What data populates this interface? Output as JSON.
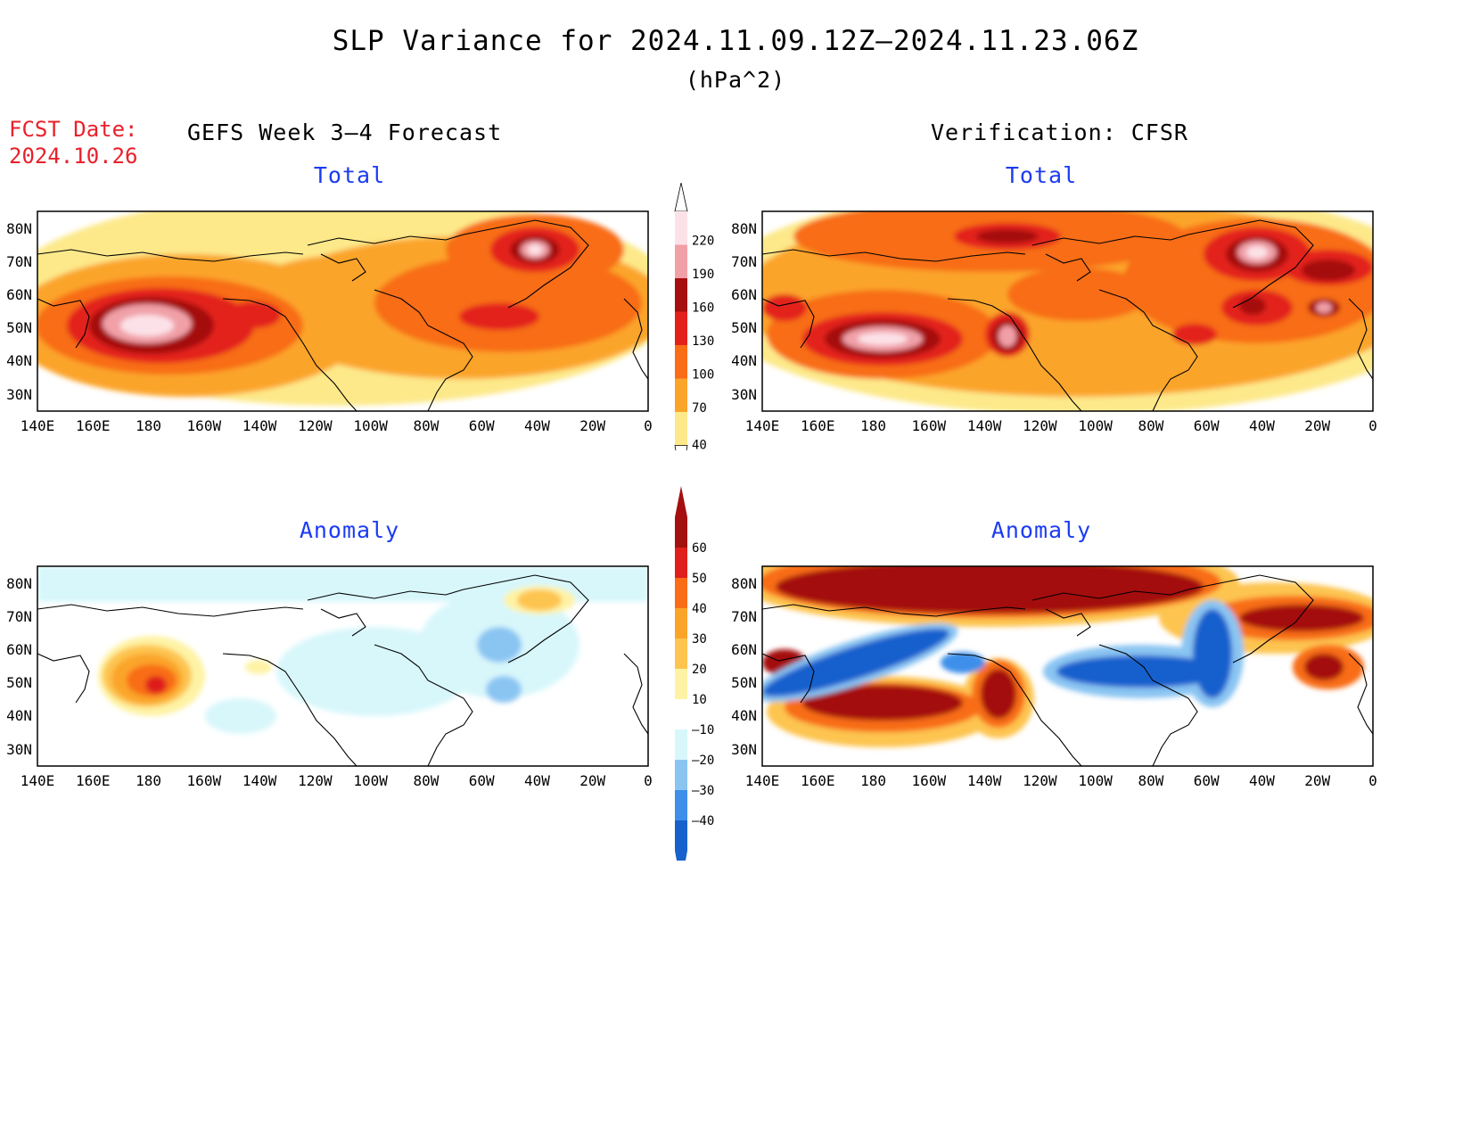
{
  "title": "SLP Variance for 2024.11.09.12Z–2024.11.23.06Z",
  "units": "(hPa^2)",
  "fcst_label": "FCST Date:",
  "fcst_date": "2024.10.26",
  "left_header": "GEFS Week 3–4 Forecast",
  "right_header": "Verification: CFSR",
  "panels": {
    "total_left_title": "Total",
    "total_right_title": "Total",
    "anom_left_title": "Anomaly",
    "anom_right_title": "Anomaly"
  },
  "lat_labels": [
    "80N",
    "70N",
    "60N",
    "50N",
    "40N",
    "30N"
  ],
  "lon_labels": [
    "140E",
    "160E",
    "180",
    "160W",
    "140W",
    "120W",
    "100W",
    "80W",
    "60W",
    "40W",
    "20W",
    "0"
  ],
  "colorbar_total": {
    "labels": [
      "40",
      "70",
      "100",
      "130",
      "160",
      "190",
      "220"
    ],
    "colors": [
      "#fde98a",
      "#fba42a",
      "#f86d16",
      "#e3211b",
      "#a50f0f",
      "#f1a0a8",
      "#fce2e8"
    ]
  },
  "colorbar_anom": {
    "labels": [
      "60",
      "50",
      "40",
      "30",
      "20",
      "10",
      "–10",
      "–20",
      "–30",
      "–40"
    ],
    "colors": [
      "#a40f0f",
      "#de1f1b",
      "#f86d16",
      "#fba42a",
      "#fdc44f",
      "#fef3a4",
      "#ffffff",
      "#d8f7fb",
      "#8ac5f2",
      "#3d8fea",
      "#1761cd"
    ]
  }
}
